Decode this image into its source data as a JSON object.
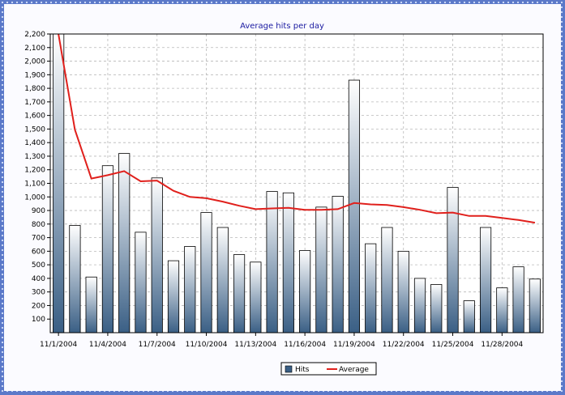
{
  "chart_data": {
    "type": "bar",
    "title": "Average hits per day",
    "xlabel": "",
    "ylabel": "",
    "ylim": [
      0,
      2200
    ],
    "yticks": [
      100,
      200,
      300,
      400,
      500,
      600,
      700,
      800,
      900,
      1000,
      1100,
      1200,
      1300,
      1400,
      1500,
      1600,
      1700,
      1800,
      1900,
      2000,
      2100,
      2200
    ],
    "ytick_labels": [
      "100",
      "200",
      "300",
      "400",
      "500",
      "600",
      "700",
      "800",
      "900",
      "1,000",
      "1,100",
      "1,200",
      "1,300",
      "1,400",
      "1,500",
      "1,600",
      "1,700",
      "1,800",
      "1,900",
      "2,000",
      "2,100",
      "2,200"
    ],
    "categories": [
      "11/1/2004",
      "11/2/2004",
      "11/3/2004",
      "11/4/2004",
      "11/5/2004",
      "11/6/2004",
      "11/7/2004",
      "11/8/2004",
      "11/9/2004",
      "11/10/2004",
      "11/11/2004",
      "11/12/2004",
      "11/13/2004",
      "11/14/2004",
      "11/15/2004",
      "11/16/2004",
      "11/17/2004",
      "11/18/2004",
      "11/19/2004",
      "11/20/2004",
      "11/21/2004",
      "11/22/2004",
      "11/23/2004",
      "11/24/2004",
      "11/25/2004",
      "11/26/2004",
      "11/27/2004",
      "11/28/2004",
      "11/29/2004",
      "11/30/2004"
    ],
    "xtick_labels": [
      "11/1/2004",
      "11/4/2004",
      "11/7/2004",
      "11/10/2004",
      "11/13/2004",
      "11/16/2004",
      "11/19/2004",
      "11/22/2004",
      "11/25/2004",
      "11/28/2004"
    ],
    "series": [
      {
        "name": "Hits",
        "type": "bar",
        "color": "#3a5f85",
        "values": [
          2200,
          790,
          410,
          1230,
          1320,
          740,
          1140,
          530,
          635,
          885,
          775,
          575,
          520,
          1040,
          1030,
          605,
          925,
          1005,
          1860,
          655,
          775,
          600,
          400,
          355,
          1070,
          235,
          775,
          330,
          485,
          395
        ]
      },
      {
        "name": "Average",
        "type": "line",
        "color": "#e0201c",
        "values": [
          2200,
          1495,
          1135,
          1160,
          1190,
          1115,
          1120,
          1045,
          1000,
          990,
          965,
          935,
          910,
          915,
          920,
          905,
          905,
          910,
          955,
          945,
          940,
          925,
          905,
          880,
          885,
          860,
          860,
          845,
          830,
          810
        ]
      }
    ],
    "grid": true,
    "legend": "bottom-center"
  }
}
